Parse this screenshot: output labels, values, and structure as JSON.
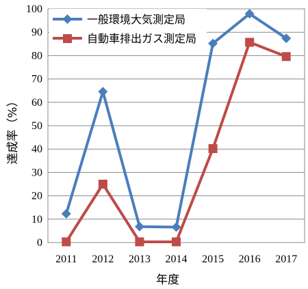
{
  "chart_data": {
    "type": "line",
    "xlabel": "年度",
    "ylabel": "達成率（%）",
    "x": [
      "2011",
      "2012",
      "2013",
      "2014",
      "2015",
      "2016",
      "2017"
    ],
    "ylim": [
      0,
      100
    ],
    "yticks": [
      0,
      10,
      20,
      30,
      40,
      50,
      60,
      70,
      80,
      90,
      100
    ],
    "grid": true,
    "legend_position": "top-left",
    "series": [
      {
        "name": "一般環境大気測定局",
        "color": "#4a7ebb",
        "marker": "diamond",
        "values": [
          12.3,
          64.6,
          6.8,
          6.6,
          85.2,
          97.9,
          87.4
        ]
      },
      {
        "name": "自動車排出ガス測定局",
        "color": "#be4b48",
        "marker": "square",
        "values": [
          0.3,
          25.0,
          0.3,
          0.3,
          40.2,
          85.7,
          79.6
        ]
      }
    ]
  }
}
